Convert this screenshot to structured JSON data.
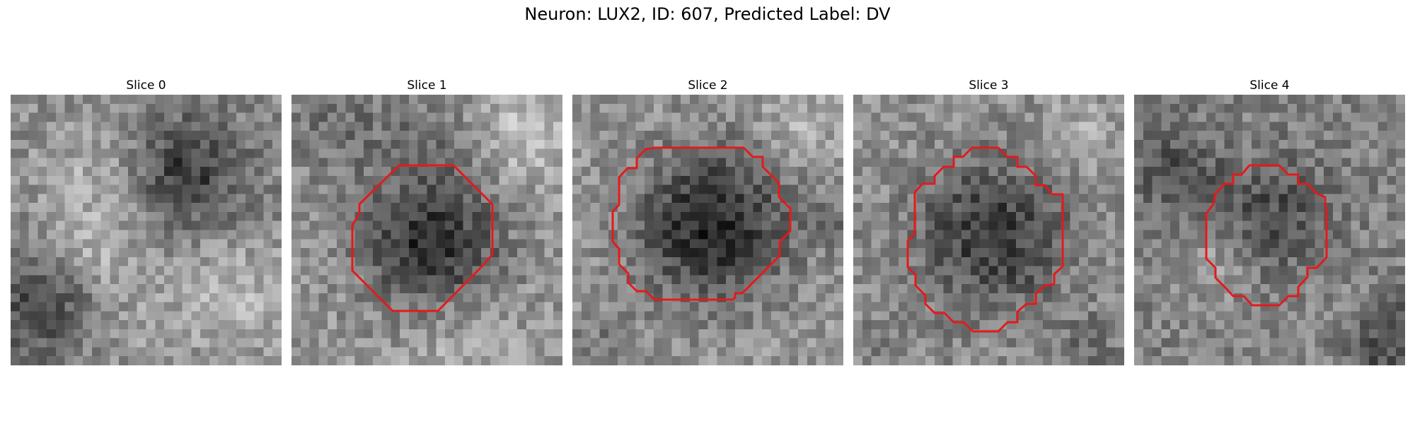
{
  "figure": {
    "title": "Neuron: LUX2, ID: 607, Predicted Label: DV"
  },
  "contour_color": "#e31a1c",
  "panels": [
    {
      "title": "Slice 0",
      "seed": 11,
      "has_contour": false
    },
    {
      "title": "Slice 1",
      "seed": 23,
      "has_contour": true
    },
    {
      "title": "Slice 2",
      "seed": 37,
      "has_contour": true
    },
    {
      "title": "Slice 3",
      "seed": 41,
      "has_contour": true
    },
    {
      "title": "Slice 4",
      "seed": 53,
      "has_contour": true
    }
  ]
}
